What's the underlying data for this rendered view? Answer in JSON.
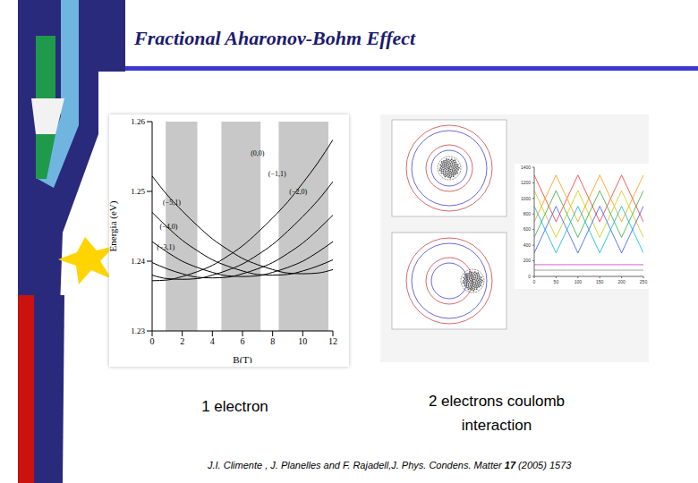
{
  "title": "Fractional Aharonov-Bohm Effect",
  "captions": [
    "1 electron",
    "2 electrons coulomb interaction"
  ],
  "citation": {
    "before": "J.I. Climente , J. Planelles and F. Rajadell,J. Phys. Condens. Matter ",
    "volume": "17",
    "after": " (2005) 1573"
  },
  "chart_data": [
    {
      "type": "line",
      "x_label": "B(T)",
      "y_label": "Energia (eV)",
      "x": [
        0,
        1,
        2,
        3,
        4,
        5,
        6,
        7,
        8,
        9,
        10,
        11,
        12
      ],
      "xlim": [
        0,
        12
      ],
      "xticks": [
        0,
        2,
        4,
        6,
        8,
        10,
        12
      ],
      "ylim": [
        1.23,
        1.26
      ],
      "yticks": [
        1.23,
        1.24,
        1.25,
        1.26
      ],
      "bands": [
        [
          0.9,
          3.0
        ],
        [
          4.6,
          7.2
        ],
        [
          8.4,
          11.7
        ]
      ],
      "series": [
        {
          "color": "#000000",
          "values": [
            1.2372,
            1.2373,
            1.2378,
            1.2385,
            1.2394,
            1.2407,
            1.2422,
            1.2441,
            1.2462,
            1.2485,
            1.2512,
            1.2541,
            1.2574
          ]
        },
        {
          "color": "#000000",
          "values": [
            1.238,
            1.2375,
            1.2374,
            1.2375,
            1.238,
            1.2387,
            1.2396,
            1.2409,
            1.2424,
            1.2443,
            1.2464,
            1.2487,
            1.2514
          ]
        },
        {
          "color": "#000000",
          "values": [
            1.2398,
            1.2389,
            1.2382,
            1.2377,
            1.2376,
            1.2377,
            1.2382,
            1.2389,
            1.2398,
            1.2411,
            1.2426,
            1.2445,
            1.2466
          ]
        },
        {
          "color": "#000000",
          "values": [
            1.2428,
            1.2413,
            1.24,
            1.2391,
            1.2384,
            1.2379,
            1.2378,
            1.2379,
            1.2384,
            1.2391,
            1.24,
            1.2413,
            1.2428
          ]
        },
        {
          "color": "#000000",
          "values": [
            1.247,
            1.2449,
            1.243,
            1.2415,
            1.2402,
            1.2393,
            1.2386,
            1.2381,
            1.238,
            1.2381,
            1.2386,
            1.2393,
            1.2402
          ]
        },
        {
          "color": "#000000",
          "values": [
            1.2522,
            1.2495,
            1.2472,
            1.2451,
            1.2432,
            1.2417,
            1.2404,
            1.2395,
            1.2388,
            1.2383,
            1.2382,
            1.2383,
            1.2388
          ]
        }
      ],
      "annotations": [
        {
          "text": "(0,0)",
          "x": 7.0,
          "y": 1.2555
        },
        {
          "text": "(−1,1)",
          "x": 8.3,
          "y": 1.2525
        },
        {
          "text": "(−2,0)",
          "x": 9.7,
          "y": 1.25
        },
        {
          "text": "(−5,1)",
          "x": 1.3,
          "y": 1.2485
        },
        {
          "text": "(−4,0)",
          "x": 1.1,
          "y": 1.245
        },
        {
          "text": "(−3,1)",
          "x": 0.9,
          "y": 1.242
        }
      ]
    },
    {
      "type": "line",
      "x": [
        0,
        25,
        50,
        75,
        100,
        125,
        150,
        175,
        200,
        225,
        250
      ],
      "xlim": [
        0,
        250
      ],
      "xticks": [
        0,
        50,
        100,
        150,
        200,
        250
      ],
      "ylim": [
        0,
        1400
      ],
      "yticks": [
        0,
        200,
        400,
        600,
        800,
        1000,
        1200,
        1400
      ],
      "series": [
        {
          "color": "#ff3333",
          "values": [
            1300,
            1000,
            700,
            1000,
            1300,
            1000,
            700,
            1000,
            1300,
            1000,
            700
          ]
        },
        {
          "color": "#ff9900",
          "values": [
            700,
            1000,
            1300,
            1000,
            700,
            1000,
            1300,
            1000,
            700,
            1000,
            1300
          ]
        },
        {
          "color": "#cccc00",
          "values": [
            1100,
            800,
            500,
            800,
            1100,
            800,
            500,
            800,
            1100,
            800,
            500
          ]
        },
        {
          "color": "#33aa33",
          "values": [
            500,
            800,
            1100,
            800,
            500,
            800,
            1100,
            800,
            500,
            800,
            1100
          ]
        },
        {
          "color": "#00bbcc",
          "values": [
            900,
            600,
            300,
            600,
            900,
            600,
            300,
            600,
            900,
            600,
            300
          ]
        },
        {
          "color": "#3355ff",
          "values": [
            300,
            600,
            900,
            600,
            300,
            600,
            900,
            600,
            300,
            600,
            900
          ]
        },
        {
          "color": "#cc33cc",
          "values": [
            150,
            150,
            150,
            150,
            150,
            150,
            150,
            150,
            150,
            150,
            150
          ]
        },
        {
          "color": "#888888",
          "values": [
            80,
            80,
            80,
            80,
            80,
            80,
            80,
            80,
            80,
            80,
            80
          ]
        }
      ]
    }
  ]
}
